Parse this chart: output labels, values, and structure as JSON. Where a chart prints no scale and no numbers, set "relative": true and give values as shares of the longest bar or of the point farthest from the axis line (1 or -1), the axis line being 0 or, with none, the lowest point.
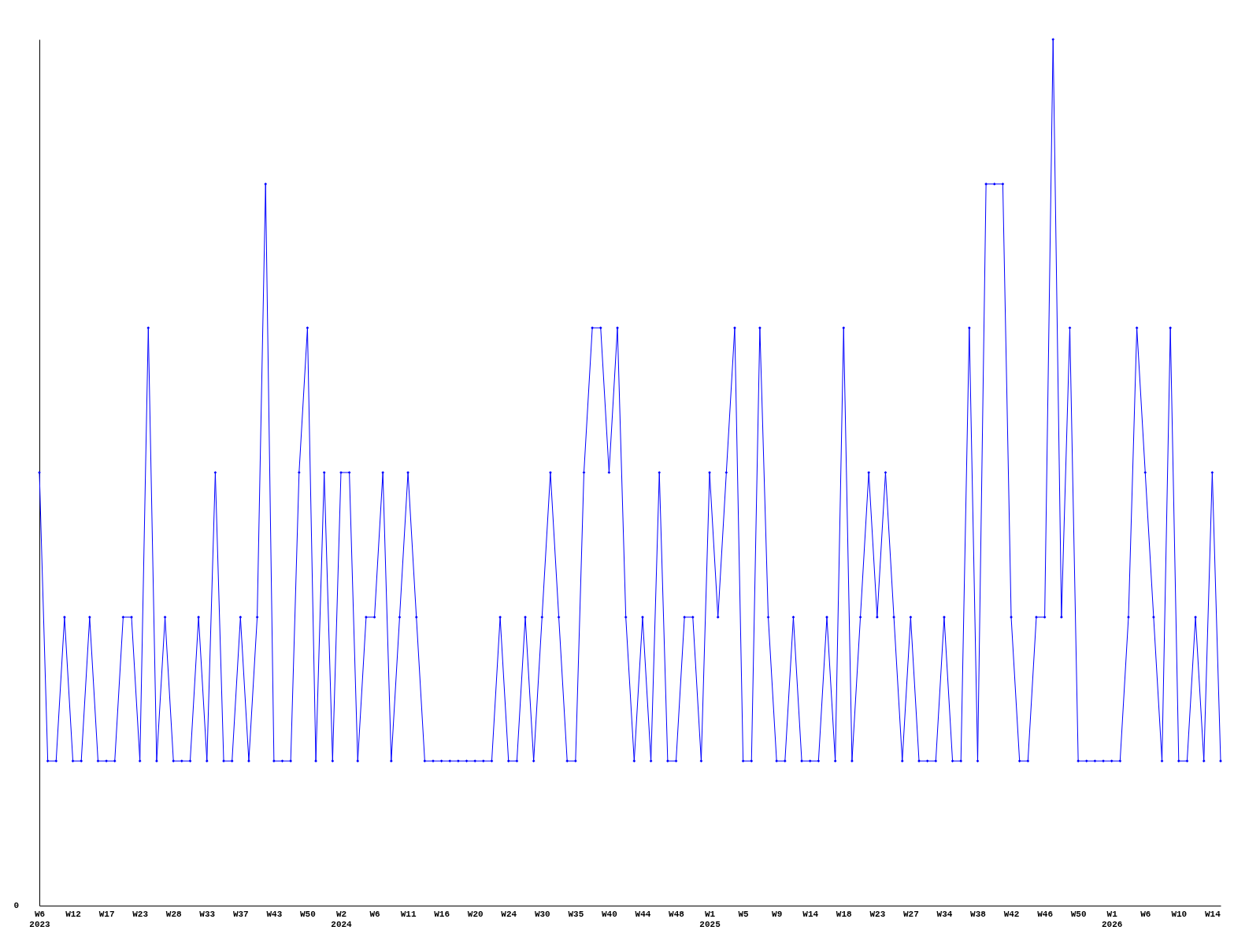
{
  "chart_data": {
    "type": "line",
    "relative": true,
    "marker": "diamond",
    "line_style": "solid",
    "grid": false,
    "categories": [
      "W6\n2023",
      null,
      null,
      null,
      "W12",
      null,
      null,
      null,
      "W17",
      null,
      null,
      null,
      "W23",
      null,
      null,
      null,
      "W28",
      null,
      null,
      null,
      "W33",
      null,
      null,
      null,
      "W37",
      null,
      null,
      null,
      "W43",
      null,
      null,
      null,
      "W50",
      null,
      null,
      null,
      "W2\n2024",
      null,
      null,
      null,
      "W6",
      null,
      null,
      null,
      "W11",
      null,
      null,
      null,
      "W16",
      null,
      null,
      null,
      "W20",
      null,
      null,
      null,
      "W24",
      null,
      null,
      null,
      "W30",
      null,
      null,
      null,
      "W35",
      null,
      null,
      null,
      "W40",
      null,
      null,
      null,
      "W44",
      null,
      null,
      null,
      "W48",
      null,
      null,
      null,
      "W1\n2025",
      null,
      null,
      null,
      "W5",
      null,
      null,
      null,
      "W9",
      null,
      null,
      null,
      "W14",
      null,
      null,
      null,
      "W18",
      null,
      null,
      null,
      "W23",
      null,
      null,
      null,
      "W27",
      null,
      null,
      null,
      "W34",
      null,
      null,
      null,
      "W38",
      null,
      null,
      null,
      "W42",
      null,
      null,
      null,
      "W46",
      null,
      null,
      null,
      "W50",
      null,
      null,
      null,
      "W1\n2026",
      null,
      null,
      null,
      "W6",
      null,
      null,
      null,
      "W10",
      null,
      null,
      null,
      "W14",
      null
    ],
    "series": [
      {
        "color": "#0000ff",
        "values": [
          0.5,
          0.167,
          0.167,
          0.333,
          0.167,
          0.167,
          0.333,
          0.167,
          0.167,
          0.167,
          0.333,
          0.333,
          0.167,
          0.667,
          0.167,
          0.333,
          0.167,
          0.167,
          0.167,
          0.333,
          0.167,
          0.5,
          0.167,
          0.167,
          0.333,
          0.167,
          0.333,
          0.833,
          0.167,
          0.167,
          0.167,
          0.5,
          0.667,
          0.167,
          0.5,
          0.167,
          0.5,
          0.5,
          0.167,
          0.333,
          0.333,
          0.5,
          0.167,
          0.333,
          0.5,
          0.333,
          0.167,
          0.167,
          0.167,
          0.167,
          0.167,
          0.167,
          0.167,
          0.167,
          0.167,
          0.333,
          0.167,
          0.167,
          0.333,
          0.167,
          0.333,
          0.5,
          0.333,
          0.167,
          0.167,
          0.5,
          0.667,
          0.667,
          0.5,
          0.667,
          0.333,
          0.167,
          0.333,
          0.167,
          0.5,
          0.167,
          0.167,
          0.333,
          0.333,
          0.167,
          0.5,
          0.333,
          0.5,
          0.667,
          0.167,
          0.167,
          0.667,
          0.333,
          0.167,
          0.167,
          0.333,
          0.167,
          0.167,
          0.167,
          0.333,
          0.167,
          0.667,
          0.167,
          0.333,
          0.5,
          0.333,
          0.5,
          0.333,
          0.167,
          0.333,
          0.167,
          0.167,
          0.167,
          0.333,
          0.167,
          0.167,
          0.667,
          0.167,
          0.833,
          0.833,
          0.833,
          0.333,
          0.167,
          0.167,
          0.333,
          0.333,
          1,
          0.333,
          0.667,
          0.167,
          0.167,
          0.167,
          0.167,
          0.167,
          0.167,
          0.333,
          0.667,
          0.5,
          0.333,
          0.167,
          0.667,
          0.167,
          0.167,
          0.333,
          0.167,
          0.5,
          0.167
        ]
      }
    ],
    "annotations": [
      "0"
    ]
  }
}
